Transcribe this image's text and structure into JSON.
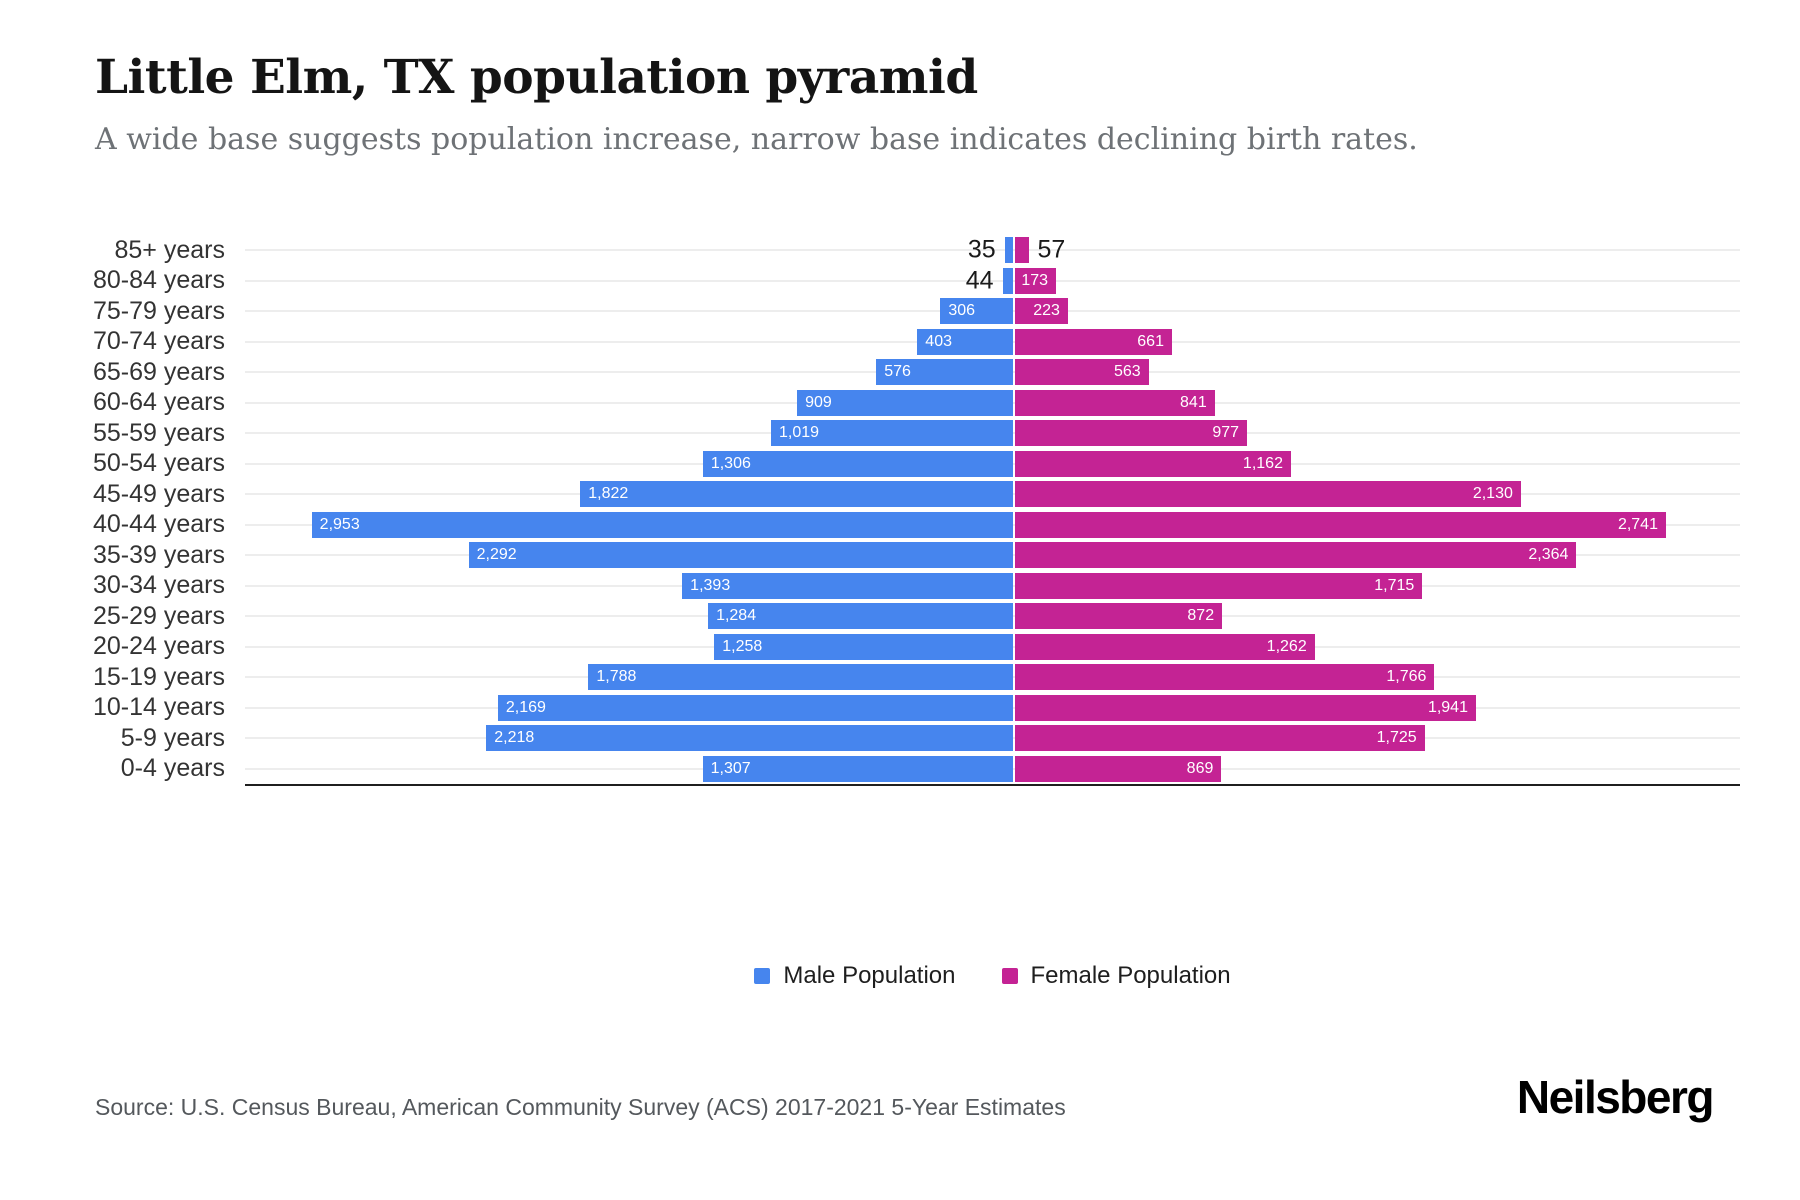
{
  "title": "Little Elm, TX population pyramid",
  "subtitle": "A wide base suggests population increase, narrow base indicates declining birth rates.",
  "source": "Source: U.S. Census Bureau, American Community Survey (ACS) 2017-2021 5-Year Estimates",
  "brand": "Neilsberg",
  "legend": {
    "male_label": "Male Population",
    "female_label": "Female Population"
  },
  "colors": {
    "male": "#4685EE",
    "female": "#C42394",
    "grid": "#ededed",
    "axis": "#1f1f1f",
    "inside_label": "#ffffff",
    "outside_label": "#1a1a1a"
  },
  "chart_data": {
    "type": "bar",
    "variant": "population-pyramid",
    "orientation": "horizontal",
    "grid": true,
    "legend_position": "bottom",
    "value_labels_shown": true,
    "axis_max_per_side_estimate": 3250,
    "categories": [
      "85+ years",
      "80-84 years",
      "75-79 years",
      "70-74 years",
      "65-69 years",
      "60-64 years",
      "55-59 years",
      "50-54 years",
      "45-49 years",
      "40-44 years",
      "35-39 years",
      "30-34 years",
      "25-29 years",
      "20-24 years",
      "15-19 years",
      "10-14 years",
      "5-9 years",
      "0-4 years"
    ],
    "series": [
      {
        "name": "Male Population",
        "side": "left",
        "color": "#4685EE",
        "values": [
          35,
          44,
          306,
          403,
          576,
          909,
          1019,
          1306,
          1822,
          2953,
          2292,
          1393,
          1284,
          1258,
          1788,
          2169,
          2218,
          1307
        ],
        "labels": [
          "35",
          "44",
          "306",
          "403",
          "576",
          "909",
          "1,019",
          "1,306",
          "1,822",
          "2,953",
          "2,292",
          "1,393",
          "1,284",
          "1,258",
          "1,788",
          "2,169",
          "2,218",
          "1,307"
        ]
      },
      {
        "name": "Female Population",
        "side": "right",
        "color": "#C42394",
        "values": [
          57,
          173,
          223,
          661,
          563,
          841,
          977,
          1162,
          2130,
          2741,
          2364,
          1715,
          872,
          1262,
          1766,
          1941,
          1725,
          869
        ],
        "labels": [
          "57",
          "173",
          "223",
          "661",
          "563",
          "841",
          "977",
          "1,162",
          "2,130",
          "2,741",
          "2,364",
          "1,715",
          "872",
          "1,262",
          "1,766",
          "1,941",
          "1,725",
          "869"
        ]
      }
    ]
  }
}
